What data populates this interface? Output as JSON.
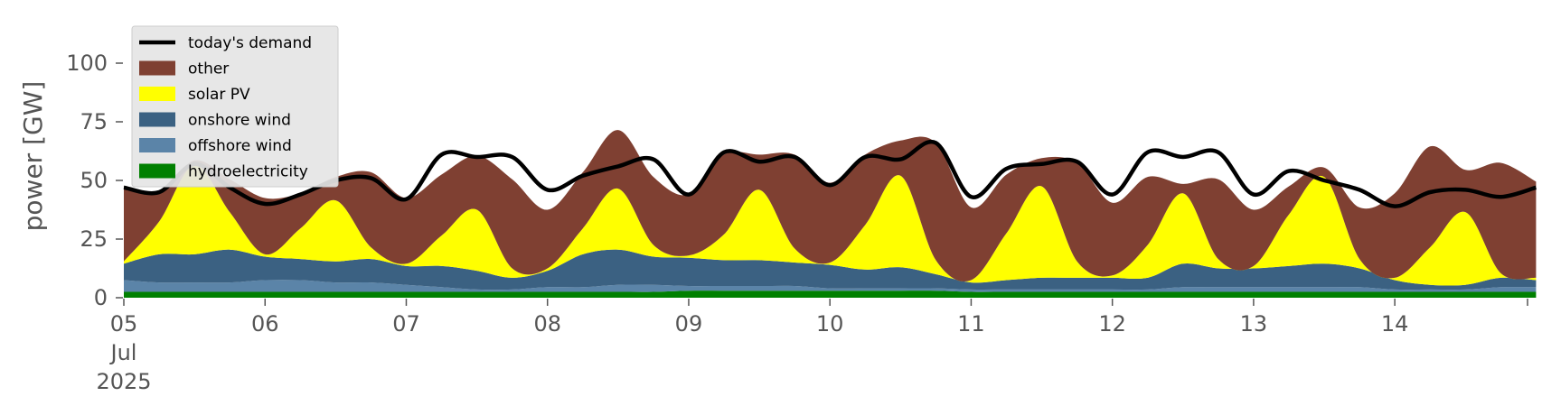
{
  "chart_data": {
    "type": "area",
    "ylabel": "power [GW]",
    "ylim": [
      0,
      120
    ],
    "yticks": [
      0,
      25,
      50,
      75,
      100
    ],
    "ytick_labels": [
      "0",
      "25",
      "50",
      "75",
      "100"
    ],
    "grid": false,
    "legend_placement": "top-left",
    "x_start": "2025-07-05",
    "x_end": "2025-07-14",
    "xtick_labels": [
      "05",
      "06",
      "07",
      "08",
      "09",
      "10",
      "11",
      "12",
      "13",
      "14"
    ],
    "xtick_sublabels": [
      "Jul",
      "2025"
    ],
    "x_samples_per_day": 4,
    "stack_order": [
      "hydroelectricity",
      "offshore wind",
      "onshore wind",
      "solar PV",
      "other"
    ],
    "legend": [
      "today's demand",
      "other",
      "solar PV",
      "onshore wind",
      "offshore wind",
      "hydroelectricity"
    ],
    "series": [
      {
        "name": "hydroelectricity",
        "color": "#008000",
        "values": [
          2.5,
          2.5,
          2.5,
          2.5,
          2.5,
          2.5,
          2.5,
          2.5,
          2.5,
          2.5,
          2.5,
          2.5,
          2.5,
          2.5,
          2.5,
          2.5,
          3,
          3,
          3,
          3,
          3,
          3,
          3,
          3,
          2.5,
          2.5,
          2.5,
          2.5,
          2.5,
          2.5,
          2.5,
          2.5,
          2.5,
          2.5,
          2.5,
          2.5,
          2.5,
          2.5,
          2.5,
          2.5,
          2.5
        ]
      },
      {
        "name": "offshore wind",
        "color": "#5b84a8",
        "values": [
          5,
          4,
          4,
          4,
          5,
          5,
          4,
          4,
          3,
          2,
          1,
          1,
          2,
          2,
          3,
          3,
          2,
          2,
          2,
          2,
          1,
          1,
          1,
          1,
          1,
          1,
          1,
          1,
          1,
          1,
          2,
          2,
          2,
          2,
          2,
          2,
          1,
          1,
          1,
          2,
          2
        ]
      },
      {
        "name": "onshore wind",
        "color": "#3b6182",
        "values": [
          7,
          12,
          12,
          14,
          10,
          9,
          9,
          10,
          8,
          9,
          8,
          5,
          7,
          14,
          15,
          12,
          12,
          11,
          11,
          10,
          10,
          8,
          9,
          6,
          3,
          4,
          5,
          5,
          5,
          5,
          10,
          8,
          8,
          9,
          10,
          8,
          4,
          2,
          2,
          4,
          3
        ]
      },
      {
        "name": "solar PV",
        "color": "#ffff00",
        "values": [
          1,
          14,
          38,
          16,
          1,
          13,
          26,
          5,
          1,
          13,
          26,
          4,
          1,
          11,
          26,
          5,
          1,
          11,
          30,
          6,
          1,
          19,
          39,
          6,
          1,
          20,
          39,
          7,
          1,
          14,
          30,
          4,
          1,
          22,
          37,
          4,
          1,
          16,
          31,
          2,
          1
        ]
      },
      {
        "name": "other",
        "color": "#7f4032",
        "values": [
          32,
          12,
          2,
          14,
          24,
          15,
          10,
          32,
          28,
          26,
          23,
          38,
          25,
          24,
          25,
          29,
          26,
          34,
          15,
          40,
          34,
          30,
          15,
          50,
          31,
          25,
          12,
          42,
          31,
          29,
          4,
          34,
          24,
          12,
          4,
          22,
          36,
          43,
          18,
          47,
          41
        ]
      }
    ],
    "demand": {
      "name": "today's demand",
      "color": "#000000",
      "values": [
        47,
        45,
        57,
        47,
        40,
        44,
        50,
        51,
        42,
        61,
        60,
        60,
        46,
        52,
        56,
        59,
        44,
        62,
        58,
        60,
        48,
        60,
        59,
        66,
        43,
        55,
        57,
        58,
        44,
        62,
        60,
        62,
        44,
        54,
        50,
        46,
        39,
        45,
        46,
        43,
        47
      ]
    }
  }
}
